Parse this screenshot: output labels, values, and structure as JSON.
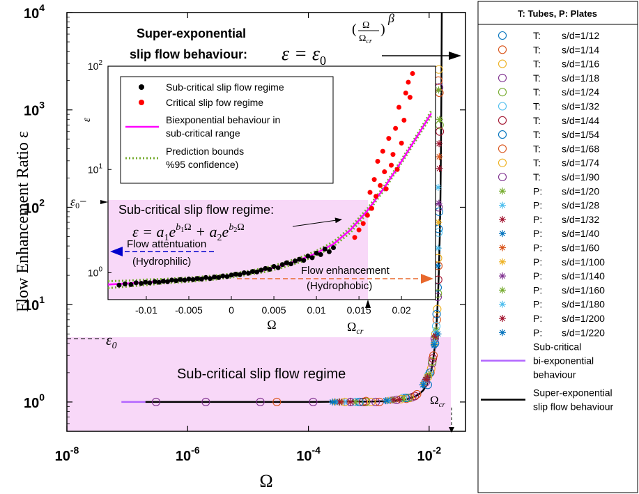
{
  "chart_data": [
    {
      "type": "scatter",
      "xscale": "log",
      "yscale": "log",
      "xlim": [
        1e-08,
        0.04
      ],
      "ylim": [
        0.5,
        10000
      ],
      "xlabel": "Ω",
      "ylabel": "Flow Enhancement Ratio ε",
      "xticks": [
        {
          "value": 1e-08,
          "base": "10",
          "exp": "-8"
        },
        {
          "value": 1e-06,
          "base": "10",
          "exp": "-6"
        },
        {
          "value": 0.0001,
          "base": "10",
          "exp": "-4"
        },
        {
          "value": 0.01,
          "base": "10",
          "exp": "-2"
        }
      ],
      "yticks": [
        {
          "value": 1,
          "base": "10",
          "exp": "0"
        },
        {
          "value": 10,
          "base": "10",
          "exp": "1"
        },
        {
          "value": 100,
          "base": "10",
          "exp": "2"
        },
        {
          "value": 1000,
          "base": "10",
          "exp": "3"
        },
        {
          "value": 10000,
          "base": "10",
          "exp": "4"
        }
      ],
      "legend_title": "T: Tubes, P: Plates",
      "legend_placement": "outside-right",
      "series": [
        {
          "name_prefix": "T:",
          "name": "s/d=1/12",
          "marker": "circle",
          "color": "#0072bd",
          "x": [
            0.0095,
            0.0125,
            0.0138,
            0.0143
          ],
          "y": [
            1.5,
            4,
            15,
            60
          ]
        },
        {
          "name_prefix": "T:",
          "name": "s/d=1/14",
          "marker": "circle",
          "color": "#d95319",
          "x": [
            3e-05,
            0.0009,
            0.0042,
            0.0105,
            0.0134,
            0.0142
          ],
          "y": [
            1,
            1.02,
            1.08,
            2.0,
            7,
            2000
          ]
        },
        {
          "name_prefix": "T:",
          "name": "s/d=1/16",
          "marker": "circle",
          "color": "#edb120",
          "x": [
            0.0011,
            0.0048,
            0.0108,
            0.0136,
            0.0144
          ],
          "y": [
            1.0,
            1.1,
            2.2,
            9,
            2600
          ]
        },
        {
          "name_prefix": "T:",
          "name": "s/d=1/18",
          "marker": "circle",
          "color": "#7e2f8e",
          "x": [
            0.0013,
            0.0052,
            0.0112,
            0.0138,
            0.0146
          ],
          "y": [
            1.0,
            1.12,
            2.5,
            12,
            1700
          ]
        },
        {
          "name_prefix": "T:",
          "name": "s/d=1/24",
          "marker": "circle",
          "color": "#77ac30",
          "x": [
            0.0009,
            0.0045,
            0.0113,
            0.0139,
            0.0149
          ],
          "y": [
            1.0,
            1.1,
            2.6,
            13,
            700
          ]
        },
        {
          "name_prefix": "T:",
          "name": "s/d=1/32",
          "marker": "circle",
          "color": "#4dbeee",
          "x": [
            0.0006,
            0.0037,
            0.0098,
            0.0131,
            0.0142
          ],
          "y": [
            1.0,
            1.1,
            1.9,
            6,
            55
          ]
        },
        {
          "name_prefix": "T:",
          "name": "s/d=1/44",
          "marker": "circle",
          "color": "#a2142f",
          "x": [
            0.0008,
            0.0058,
            0.0115,
            0.0141,
            0.015
          ],
          "y": [
            1.0,
            1.15,
            2.8,
            18,
            600
          ]
        },
        {
          "name_prefix": "T:",
          "name": "s/d=1/54",
          "marker": "circle",
          "color": "#0072bd",
          "x": [
            0.0007,
            0.0041,
            0.0103,
            0.0133,
            0.0146
          ],
          "y": [
            1.0,
            1.1,
            2.0,
            8,
            90
          ]
        },
        {
          "name_prefix": "T:",
          "name": "s/d=1/68",
          "marker": "circle",
          "color": "#d95319",
          "x": [
            0.0015,
            0.0063,
            0.0118,
            0.0142,
            0.0148
          ],
          "y": [
            1.0,
            1.2,
            3,
            25,
            1500
          ]
        },
        {
          "name_prefix": "T:",
          "name": "s/d=1/74",
          "marker": "circle",
          "color": "#edb120",
          "x": [
            0.0004,
            0.0034,
            0.0095,
            0.0127,
            0.014
          ],
          "y": [
            1.0,
            1.07,
            1.8,
            5,
            30
          ]
        },
        {
          "name_prefix": "T:",
          "name": "s/d=1/90",
          "marker": "circle",
          "color": "#7e2f8e",
          "x": [
            3e-07,
            2e-06,
            1.6e-05,
            0.00012,
            0.0005,
            0.0029,
            0.0088,
            0.0124,
            0.0143
          ],
          "y": [
            1,
            1,
            1,
            1,
            1.0,
            1.05,
            1.6,
            4.5,
            100
          ]
        },
        {
          "name_prefix": "P:",
          "name": "s/d=1/20",
          "marker": "asterisk",
          "color": "#77ac30",
          "x": [
            0.0006,
            0.0037,
            0.0099,
            0.0131,
            0.0144
          ],
          "y": [
            1.0,
            1.08,
            1.9,
            5.5,
            1600
          ]
        },
        {
          "name_prefix": "P:",
          "name": "s/d=1/28",
          "marker": "asterisk",
          "color": "#4dbeee",
          "x": [
            0.0004,
            0.0026,
            0.0089,
            0.0126,
            0.0141
          ],
          "y": [
            1.0,
            1.05,
            1.7,
            5.2,
            160
          ]
        },
        {
          "name_prefix": "P:",
          "name": "s/d=1/32",
          "marker": "asterisk",
          "color": "#a2142f",
          "x": [
            0.0005,
            0.0032,
            0.0094,
            0.0128,
            0.0148
          ],
          "y": [
            1.0,
            1.06,
            1.8,
            4.8,
            250
          ]
        },
        {
          "name_prefix": "P:",
          "name": "s/d=1/40",
          "marker": "asterisk",
          "color": "#0072bd",
          "x": [
            0.00025,
            0.0019,
            0.0078,
            0.0121,
            0.0139
          ],
          "y": [
            1.0,
            1.03,
            1.5,
            3.8,
            25
          ]
        },
        {
          "name_prefix": "P:",
          "name": "s/d=1/60",
          "marker": "asterisk",
          "color": "#d95319",
          "x": [
            0.00035,
            0.0023,
            0.0084,
            0.0124,
            0.0147
          ],
          "y": [
            1.0,
            1.04,
            1.6,
            4.2,
            330
          ]
        },
        {
          "name_prefix": "P:",
          "name": "s/d=1/100",
          "marker": "asterisk",
          "color": "#edb120",
          "x": [
            0.00028,
            0.0021,
            0.0081,
            0.0122,
            0.0143
          ],
          "y": [
            1.0,
            1.04,
            1.55,
            4,
            70
          ]
        },
        {
          "name_prefix": "P:",
          "name": "s/d=1/140",
          "marker": "asterisk",
          "color": "#7e2f8e",
          "x": [
            0.0003,
            0.0024,
            0.0086,
            0.0125,
            0.0145
          ],
          "y": [
            1.0,
            1.05,
            1.65,
            4.4,
            110
          ]
        },
        {
          "name_prefix": "P:",
          "name": "s/d=1/160",
          "marker": "asterisk",
          "color": "#77ac30",
          "x": [
            0.00032,
            0.0025,
            0.0087,
            0.0126,
            0.0149
          ],
          "y": [
            1.0,
            1.05,
            1.7,
            4.6,
            800
          ]
        },
        {
          "name_prefix": "P:",
          "name": "s/d=1/180",
          "marker": "asterisk",
          "color": "#4dbeee",
          "x": [
            0.0003,
            0.0022,
            0.0083,
            0.0123,
            0.0141
          ],
          "y": [
            1.0,
            1.04,
            1.6,
            4.1,
            38
          ]
        },
        {
          "name_prefix": "P:",
          "name": "s/d=1/200",
          "marker": "asterisk",
          "color": "#a2142f",
          "x": [
            0.00033,
            0.0026,
            0.0088,
            0.0127,
            0.0146
          ],
          "y": [
            1.0,
            1.05,
            1.7,
            4.7,
            450
          ]
        },
        {
          "name_prefix": "P:",
          "name": "s/d=1/220",
          "marker": "asterisk",
          "color": "#0072bd",
          "x": [
            0.00027,
            0.002,
            0.008,
            0.0121,
            0.014
          ],
          "y": [
            1.0,
            1.03,
            1.5,
            3.9,
            5
          ]
        }
      ],
      "lines": [
        {
          "name": "Sub-critical bi-exponential behaviour",
          "color": "#b266ff",
          "x": [
            8e-08,
            2e-07
          ],
          "y": [
            1,
            1
          ]
        },
        {
          "name": "Super-exponential slip flow behaviour",
          "color": "#000000",
          "x": [
            2e-07,
            1e-06,
            1e-05,
            0.0001,
            0.0005,
            0.001,
            0.002,
            0.003,
            0.004,
            0.005,
            0.006,
            0.007,
            0.008,
            0.009,
            0.01,
            0.011,
            0.012,
            0.0125,
            0.013,
            0.0135,
            0.014,
            0.0145,
            0.015,
            0.0154,
            0.0158,
            0.016,
            0.0162
          ],
          "y": [
            1,
            1,
            1,
            1,
            1.01,
            1.01,
            1.02,
            1.04,
            1.06,
            1.1,
            1.15,
            1.22,
            1.32,
            1.48,
            1.75,
            2.2,
            3.1,
            3.9,
            5.2,
            7.5,
            12,
            22,
            50,
            130,
            600,
            2000,
            10000
          ]
        }
      ],
      "legend_entries": [
        {
          "label": "T:",
          "value": "s/d=1/12"
        }
      ],
      "line_legend": [
        {
          "lines": [
            "Sub-critical",
            "bi-exponential",
            "behaviour"
          ],
          "color": "#b266ff"
        },
        {
          "lines": [
            "Super-exponential",
            "slip flow behaviour"
          ],
          "color": "#000000"
        }
      ],
      "annotations": {
        "super_title_1": "Super-exponential",
        "super_title_2": "slip flow behaviour:",
        "super_formula": "ε = ε",
        "super_formula_sub": "0",
        "super_exp_num": "Ω",
        "super_exp_den": "Ω",
        "super_exp_den_sub": "cr",
        "super_exp_power": "β",
        "main_region": "Sub-critical slip flow regime",
        "eps0": "ε",
        "eps0_sub": "0",
        "omega_cr": "Ω",
        "omega_cr_sub": "cr"
      }
    },
    {
      "type": "scatter",
      "xscale": "linear",
      "yscale": "log",
      "xlim": [
        -0.0145,
        0.024
      ],
      "ylim": [
        0.55,
        100
      ],
      "xlabel": "Ω",
      "ylabel": "ε",
      "xticks": [
        {
          "value": -0.01,
          "label": "-0.01"
        },
        {
          "value": -0.005,
          "label": "-0.005"
        },
        {
          "value": 0,
          "label": "0"
        },
        {
          "value": 0.005,
          "label": "0.005"
        },
        {
          "value": 0.01,
          "label": "0.01"
        },
        {
          "value": 0.015,
          "label": "0.015"
        },
        {
          "value": 0.02,
          "label": "0.02"
        }
      ],
      "yticks": [
        {
          "value": 1,
          "base": "10",
          "exp": "0"
        },
        {
          "value": 10,
          "base": "10",
          "exp": "1"
        },
        {
          "value": 100,
          "base": "10",
          "exp": "2"
        }
      ],
      "legend_placement": "top-left",
      "legend": [
        {
          "label": "Sub-critical slip flow regime",
          "kind": "dot",
          "color": "#000000"
        },
        {
          "label": "Critical slip fow regime",
          "kind": "dot",
          "color": "#ff0000"
        },
        {
          "label": "Biexponential behaviour in",
          "label2": "sub-critical range",
          "kind": "line",
          "color": "#ff00ff"
        },
        {
          "label": "Prediction bounds",
          "label2": "%95 confidence)",
          "kind": "dotted",
          "color": "#77ac30"
        }
      ],
      "subcritical_points": {
        "x": [
          -0.0132,
          -0.0125,
          -0.0118,
          -0.0112,
          -0.0106,
          -0.0101,
          -0.0096,
          -0.009,
          -0.0085,
          -0.008,
          -0.0075,
          -0.007,
          -0.0065,
          -0.006,
          -0.0055,
          -0.005,
          -0.0045,
          -0.004,
          -0.0035,
          -0.003,
          -0.0025,
          -0.002,
          -0.0015,
          -0.001,
          -0.0005,
          0.0,
          0.0005,
          0.001,
          0.0015,
          0.002,
          0.0025,
          0.003,
          0.0035,
          0.004,
          0.0045,
          0.005,
          0.0055,
          0.006,
          0.0065,
          0.007,
          0.0075,
          0.008,
          0.0085,
          0.009,
          0.0095,
          0.01,
          0.0105,
          0.011,
          0.0115,
          0.012
        ],
        "y": [
          0.76,
          0.78,
          0.77,
          0.8,
          0.79,
          0.81,
          0.8,
          0.82,
          0.81,
          0.83,
          0.82,
          0.85,
          0.84,
          0.86,
          0.85,
          0.87,
          0.86,
          0.88,
          0.87,
          0.9,
          0.88,
          0.91,
          0.9,
          0.93,
          0.92,
          0.95,
          0.97,
          0.96,
          1.0,
          0.99,
          1.03,
          1.02,
          1.06,
          1.1,
          1.08,
          1.15,
          1.12,
          1.2,
          1.25,
          1.22,
          1.3,
          1.35,
          1.32,
          1.45,
          1.4,
          1.55,
          1.5,
          1.7,
          1.6,
          1.75
        ]
      },
      "critical_points": {
        "x": [
          0.0145,
          0.015,
          0.0155,
          0.016,
          0.0163,
          0.0165,
          0.0168,
          0.017,
          0.0172,
          0.0175,
          0.0178,
          0.018,
          0.0182,
          0.0185,
          0.0188,
          0.019,
          0.0193,
          0.0195,
          0.0197,
          0.02,
          0.0203,
          0.0205,
          0.0208,
          0.021,
          0.0213
        ],
        "y": [
          2.2,
          2.6,
          3.0,
          3.6,
          6.0,
          4.2,
          8.0,
          5.5,
          12,
          7.0,
          15,
          9.5,
          6.5,
          20,
          11,
          14,
          25,
          10,
          40,
          18,
          30,
          55,
          70,
          50,
          85
        ]
      },
      "fit_curve": {
        "x": [
          -0.0145,
          -0.012,
          -0.01,
          -0.008,
          -0.006,
          -0.004,
          -0.002,
          0.0,
          0.002,
          0.004,
          0.006,
          0.008,
          0.01,
          0.012,
          0.014,
          0.016,
          0.018,
          0.02,
          0.022,
          0.0235
        ],
        "y": [
          0.77,
          0.79,
          0.81,
          0.83,
          0.85,
          0.87,
          0.9,
          0.94,
          1.0,
          1.07,
          1.18,
          1.33,
          1.55,
          1.9,
          2.6,
          4.0,
          6.7,
          12,
          22,
          35
        ]
      },
      "bounds": {
        "upper_y": [
          0.83,
          0.84,
          0.86,
          0.87,
          0.89,
          0.91,
          0.94,
          0.98,
          1.04,
          1.12,
          1.24,
          1.4,
          1.63,
          2.0,
          2.75,
          4.2,
          7.0,
          12.5,
          23,
          37
        ],
        "lower_y": [
          0.71,
          0.74,
          0.76,
          0.79,
          0.81,
          0.83,
          0.86,
          0.9,
          0.96,
          1.02,
          1.12,
          1.26,
          1.47,
          1.8,
          2.45,
          3.8,
          6.4,
          11.5,
          21,
          33
        ]
      },
      "annotations": {
        "region": "Sub-critical slip flow regime:",
        "formula_lhs": "ε = a",
        "formula_sub1": "1",
        "formula_e1": "e",
        "formula_b1": "b",
        "formula_b1_sub": "1",
        "formula_Omega1": "Ω",
        "formula_plus": " + a",
        "formula_sub2": "2",
        "formula_e2": "e",
        "formula_b2": "b",
        "formula_b2_sub": "2",
        "formula_Omega2": "Ω",
        "attenuation": "Flow attentuation",
        "hydrophilic": "(Hydrophilic)",
        "enhancement": "Flow enhancement",
        "hydrophobic": "(Hydrophobic)",
        "eps0": "ε",
        "eps0_sub": "0",
        "eps0_dash": "−",
        "omega_cr": "Ω",
        "omega_cr_sub": "cr"
      }
    }
  ]
}
